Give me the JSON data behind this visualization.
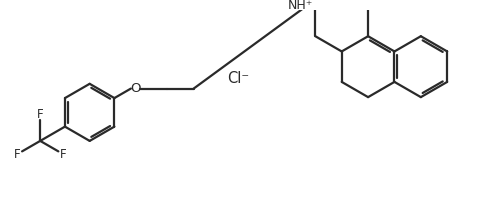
{
  "background": "#ffffff",
  "line_color": "#2a2a2a",
  "line_width": 1.6,
  "text_color": "#2a2a2a",
  "font_size": 9.5,
  "cl_label": "Cl⁻",
  "nh_label": "NH⁺",
  "o_label": "O"
}
